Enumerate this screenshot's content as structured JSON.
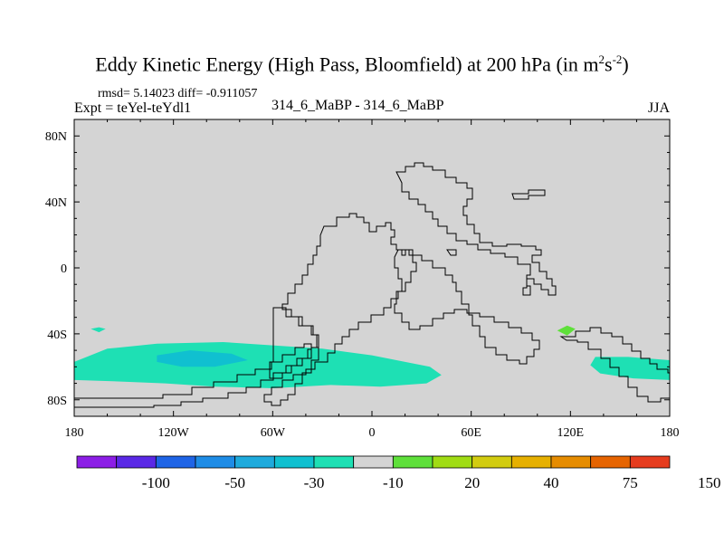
{
  "header": {
    "title_main": "Eddy Kinetic Energy (High Pass, Bloomfield) at 200 hPa (in m",
    "title_sup1": "2",
    "title_mid": "s",
    "title_sup2": "-2",
    "title_end": ")",
    "rmsd_line": "rmsd= 5.14023 diff= -0.911057",
    "expt_line": "Expt = teYel-teYdl1",
    "case_line": "314_6_MaBP - 314_6_MaBP",
    "season": "JJA"
  },
  "chart_data": {
    "type": "heatmap",
    "title": "Eddy Kinetic Energy (High Pass, Bloomfield) at 200 hPa (in m^2s^-2)",
    "x_range": [
      -180,
      180
    ],
    "y_range": [
      -90,
      90
    ],
    "x_ticks": [
      {
        "value": -180,
        "label": "180"
      },
      {
        "value": -120,
        "label": "120W"
      },
      {
        "value": -60,
        "label": "60W"
      },
      {
        "value": 0,
        "label": "0"
      },
      {
        "value": 60,
        "label": "60E"
      },
      {
        "value": 120,
        "label": "120E"
      },
      {
        "value": 180,
        "label": "180"
      }
    ],
    "y_ticks": [
      {
        "value": 80,
        "label": "80N"
      },
      {
        "value": 40,
        "label": "40N"
      },
      {
        "value": 0,
        "label": "0"
      },
      {
        "value": -40,
        "label": "40S"
      },
      {
        "value": -80,
        "label": "80S"
      }
    ],
    "background_level": "-10 to 10 (near zero)",
    "regions": [
      {
        "name": "southern-mid-latitude-negative-band",
        "category": "-30 to -10",
        "color": "#1ee0b4",
        "outline_lonlat": [
          [
            -180,
            -57
          ],
          [
            -160,
            -49
          ],
          [
            -130,
            -46
          ],
          [
            -90,
            -45
          ],
          [
            -60,
            -47
          ],
          [
            -30,
            -49
          ],
          [
            0,
            -53
          ],
          [
            20,
            -57
          ],
          [
            35,
            -60
          ],
          [
            42,
            -65
          ],
          [
            33,
            -70
          ],
          [
            5,
            -72
          ],
          [
            -25,
            -71
          ],
          [
            -60,
            -73
          ],
          [
            -95,
            -72
          ],
          [
            -125,
            -70
          ],
          [
            -150,
            -69
          ],
          [
            -180,
            -68
          ]
        ]
      },
      {
        "name": "southern-core-negative-patch",
        "category": "-50 to -30",
        "color": "#10c0d0",
        "outline_lonlat": [
          [
            -130,
            -53
          ],
          [
            -110,
            -50
          ],
          [
            -85,
            -52
          ],
          [
            -75,
            -56
          ],
          [
            -95,
            -60
          ],
          [
            -115,
            -60
          ],
          [
            -130,
            -57
          ]
        ]
      },
      {
        "name": "pacific-east-negative-patch",
        "category": "-30 to -10",
        "color": "#1ee0b4",
        "outline_lonlat": [
          [
            135,
            -54
          ],
          [
            155,
            -54
          ],
          [
            180,
            -56
          ],
          [
            180,
            -68
          ],
          [
            158,
            -67
          ],
          [
            138,
            -64
          ],
          [
            132,
            -59
          ]
        ]
      },
      {
        "name": "south-pacific-small-negative",
        "category": "-30 to -10",
        "color": "#1ee0b4",
        "outline_lonlat": [
          [
            -170,
            -37
          ],
          [
            -165,
            -36
          ],
          [
            -161,
            -37
          ],
          [
            -165,
            -39
          ]
        ]
      },
      {
        "name": "indian-ocean-small-positive",
        "category": "10 to 20",
        "color": "#5ee03a",
        "outline_lonlat": [
          [
            112,
            -38
          ],
          [
            118,
            -35
          ],
          [
            123,
            -37
          ],
          [
            118,
            -41
          ]
        ]
      }
    ],
    "colorbar": {
      "colors": [
        "#8c1ee6",
        "#5a28e6",
        "#1e64e6",
        "#1e8ce6",
        "#1eaadc",
        "#10c0d0",
        "#1ee0b4",
        "#d4d4d4",
        "#5ee03a",
        "#a0dc14",
        "#d2cc10",
        "#e6b000",
        "#e68c00",
        "#e66400",
        "#e63c1e"
      ],
      "labels": [
        "-100",
        "-50",
        "-30",
        "-10",
        "20",
        "40",
        "75",
        "150"
      ]
    }
  }
}
